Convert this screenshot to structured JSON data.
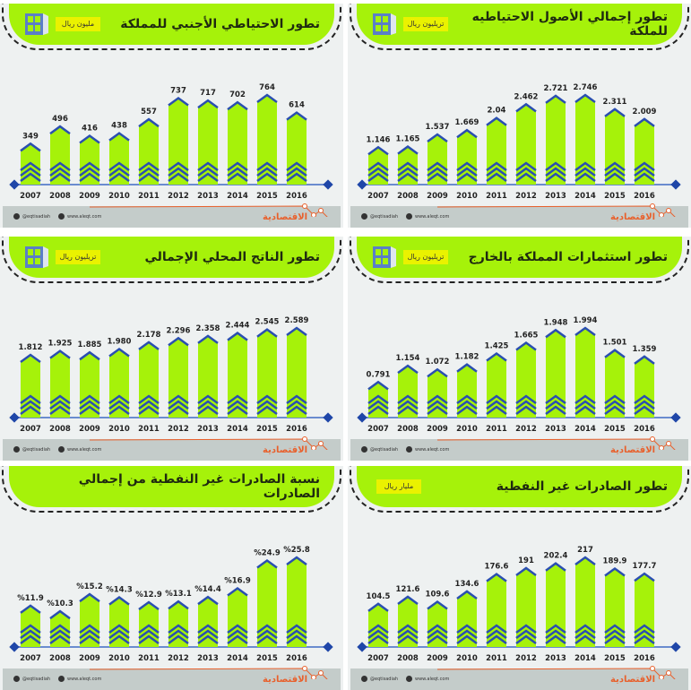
{
  "footer": {
    "twitter": "@eqtisadiah",
    "website": "www.aleqt.com",
    "logo": "الاقتصادية"
  },
  "colors": {
    "header": "#a6f20a",
    "bar": "#a6f20a",
    "accent": "#2a4fb0",
    "baseline": "#6a8ccf",
    "footer_line": "#e8602c"
  },
  "chart_data": [
    {
      "type": "bar",
      "title": "تطور الاحتياطي الأجنبي للمملكة",
      "unit": "مليون ريال",
      "icon": "bank-safe-icon",
      "categories": [
        "2007",
        "2008",
        "2009",
        "2010",
        "2011",
        "2012",
        "2013",
        "2014",
        "2015",
        "2016"
      ],
      "values": [
        349,
        496,
        416,
        438,
        557,
        737,
        717,
        702,
        764,
        614
      ],
      "labels": [
        "349",
        "496",
        "416",
        "438",
        "557",
        "737",
        "717",
        "702",
        "764",
        "614"
      ],
      "ylim": [
        0,
        764
      ]
    },
    {
      "type": "bar",
      "title": "تطور إجمالي الأصول الاحتياطيه للملكة",
      "unit": "تريليون ريال",
      "icon": "bank-safe-icon",
      "categories": [
        "2007",
        "2008",
        "2009",
        "2010",
        "2011",
        "2012",
        "2013",
        "2014",
        "2015",
        "2016"
      ],
      "values": [
        1.146,
        1.165,
        1.537,
        1.669,
        2.04,
        2.462,
        2.721,
        2.746,
        2.311,
        2.009
      ],
      "labels": [
        "1.146",
        "1.165",
        "1.537",
        "1.669",
        "2.04",
        "2.462",
        "2.721",
        "2.746",
        "2.311",
        "2.009"
      ],
      "ylim": [
        0,
        2.746
      ]
    },
    {
      "type": "bar",
      "title": "تطور الناتج المحلي الإجمالي",
      "unit": "تريليون ريال",
      "icon": "bank-safe-icon",
      "categories": [
        "2007",
        "2008",
        "2009",
        "2010",
        "2011",
        "2012",
        "2013",
        "2014",
        "2015",
        "2016"
      ],
      "values": [
        1.812,
        1.925,
        1.885,
        1.98,
        2.178,
        2.296,
        2.358,
        2.444,
        2.545,
        2.589
      ],
      "labels": [
        "1.812",
        "1.925",
        "1.885",
        "1.980",
        "2.178",
        "2.296",
        "2.358",
        "2.444",
        "2.545",
        "2.589"
      ],
      "ylim": [
        0,
        2.589
      ]
    },
    {
      "type": "bar",
      "title": "تطور استثمارات المملكة بالخارج",
      "unit": "تريليون ريال",
      "icon": "bank-safe-icon",
      "categories": [
        "2007",
        "2008",
        "2009",
        "2010",
        "2011",
        "2012",
        "2013",
        "2014",
        "2015",
        "2016"
      ],
      "values": [
        0.791,
        1.154,
        1.072,
        1.182,
        1.425,
        1.665,
        1.948,
        1.994,
        1.501,
        1.359
      ],
      "labels": [
        "0.791",
        "1.154",
        "1.072",
        "1.182",
        "1.425",
        "1.665",
        "1.948",
        "1.994",
        "1.501",
        "1.359"
      ],
      "ylim": [
        0,
        1.994
      ]
    },
    {
      "type": "bar",
      "title": "نسبة الصادرات غير النفطية من إجمالي الصادرات",
      "unit": null,
      "icon": null,
      "categories": [
        "2007",
        "2008",
        "2009",
        "2010",
        "2011",
        "2012",
        "2013",
        "2014",
        "2015",
        "2016"
      ],
      "values": [
        11.9,
        10.3,
        15.2,
        14.3,
        12.9,
        13.1,
        14.4,
        16.9,
        24.9,
        25.8
      ],
      "labels": [
        "%11.9",
        "%10.3",
        "%15.2",
        "%14.3",
        "%12.9",
        "%13.1",
        "%14.4",
        "%16.9",
        "%24.9",
        "%25.8"
      ],
      "ylim": [
        0,
        25.8
      ]
    },
    {
      "type": "bar",
      "title": "تطور الصادرات غير النفطية",
      "unit": "مليار ريال",
      "icon": null,
      "categories": [
        "2007",
        "2008",
        "2009",
        "2010",
        "2011",
        "2012",
        "2013",
        "2014",
        "2015",
        "2016"
      ],
      "values": [
        104.5,
        121.6,
        109.6,
        134.6,
        176.6,
        191,
        202.4,
        217,
        189.9,
        177.7
      ],
      "labels": [
        "104.5",
        "121.6",
        "109.6",
        "134.6",
        "176.6",
        "191",
        "202.4",
        "217",
        "189.9",
        "177.7"
      ],
      "ylim": [
        0,
        217
      ]
    }
  ]
}
